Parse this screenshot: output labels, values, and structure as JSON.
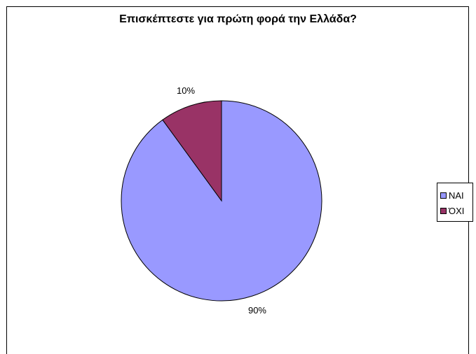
{
  "chart_data": {
    "type": "pie",
    "title": "Επισκέπτεστε για πρώτη φορά την Ελλάδα?",
    "slices": [
      {
        "label": "ΝΑΙ",
        "value": 90,
        "data_label": "90%",
        "color": "#9999ff"
      },
      {
        "label": "ΌΧΙ",
        "value": 10,
        "data_label": "10%",
        "color": "#993366"
      }
    ],
    "legend_position": "right"
  }
}
